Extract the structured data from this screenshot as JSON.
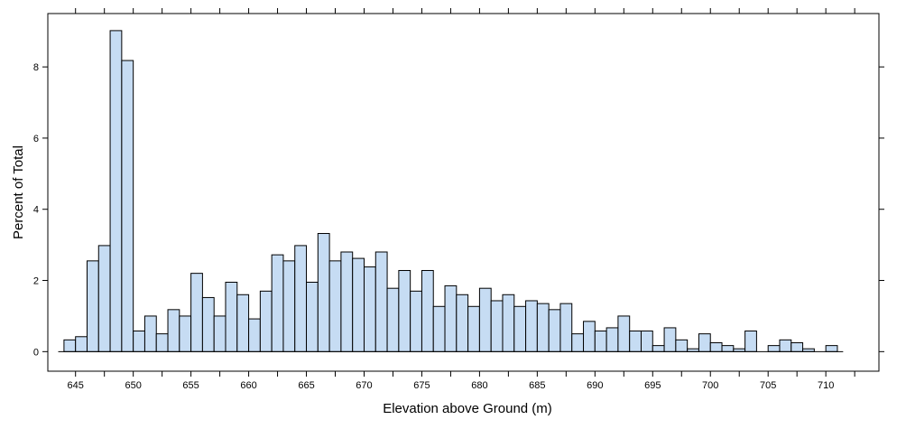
{
  "chart_data": {
    "type": "bar",
    "title": "",
    "xlabel": "Elevation above Ground (m)",
    "ylabel": "Percent of Total",
    "xlim": [
      642.6,
      714.6
    ],
    "ylim": [
      -0.55,
      9.5
    ],
    "x_ticks": [
      645,
      650,
      655,
      660,
      665,
      670,
      675,
      680,
      685,
      690,
      695,
      700,
      705,
      710
    ],
    "y_ticks": [
      0,
      2,
      4,
      6,
      8
    ],
    "bin_width": 1,
    "bin_start": 644,
    "values": [
      0.33,
      0.42,
      2.55,
      2.98,
      9.02,
      8.18,
      0.58,
      1.0,
      0.5,
      1.18,
      1.0,
      2.2,
      1.52,
      1.0,
      1.95,
      1.6,
      0.92,
      1.7,
      2.72,
      2.55,
      2.98,
      1.95,
      3.32,
      2.55,
      2.8,
      2.62,
      2.38,
      2.8,
      1.78,
      2.28,
      1.7,
      2.28,
      1.27,
      1.85,
      1.6,
      1.27,
      1.78,
      1.43,
      1.6,
      1.27,
      1.43,
      1.35,
      1.18,
      1.35,
      0.5,
      0.85,
      0.58,
      0.67,
      1.0,
      0.58,
      0.58,
      0.17,
      0.67,
      0.33,
      0.08,
      0.5,
      0.25,
      0.17,
      0.08,
      0.58,
      0.0,
      0.17,
      0.33,
      0.25,
      0.08,
      0.0,
      0.17
    ],
    "grid": false,
    "legend": "none",
    "colors": {
      "bar_fill": "#c6dcf3",
      "bar_stroke": "#000000",
      "axis": "#000000"
    }
  }
}
